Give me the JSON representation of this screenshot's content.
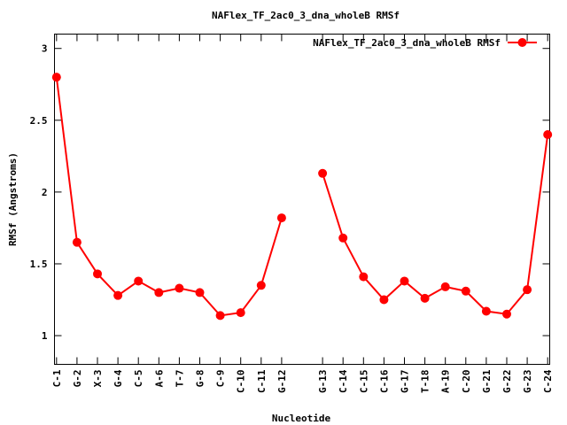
{
  "chart_data": {
    "type": "line",
    "title": "NAFlex_TF_2ac0_3_dna_wholeB RMSf",
    "xlabel": "Nucleotide",
    "ylabel": "RMSf (Angstroms)",
    "ylim": [
      0.8,
      3.1
    ],
    "yticks": [
      1,
      1.5,
      2,
      2.5,
      3
    ],
    "ytick_labels": [
      "1",
      "1.5",
      "2",
      "2.5",
      "3"
    ],
    "xlim": [
      0.9,
      25.1
    ],
    "grid": false,
    "legend_position": "top-right",
    "series": [
      {
        "name": "NAFlex_TF_2ac0_3_dna_wholeB RMSf",
        "color": "#ff0000",
        "segments": [
          {
            "x": [
              1,
              2,
              3,
              4,
              5,
              6,
              7,
              8,
              9,
              10,
              11,
              12
            ],
            "labels": [
              "C-1",
              "G-2",
              "X-3",
              "G-4",
              "C-5",
              "A-6",
              "T-7",
              "G-8",
              "C-9",
              "C-10",
              "C-11",
              "G-12"
            ],
            "values": [
              2.8,
              1.65,
              1.43,
              1.28,
              1.38,
              1.3,
              1.33,
              1.3,
              1.14,
              1.16,
              1.35,
              1.82
            ]
          },
          {
            "x": [
              14,
              15,
              16,
              17,
              18,
              19,
              20,
              21,
              22,
              23,
              24,
              25
            ],
            "labels": [
              "G-13",
              "C-14",
              "C-15",
              "C-16",
              "G-17",
              "T-18",
              "A-19",
              "C-20",
              "G-21",
              "G-22",
              "G-23",
              "C-24"
            ],
            "values": [
              2.13,
              1.68,
              1.41,
              1.25,
              1.38,
              1.26,
              1.34,
              1.31,
              1.17,
              1.15,
              1.32,
              2.4
            ]
          }
        ]
      }
    ]
  }
}
